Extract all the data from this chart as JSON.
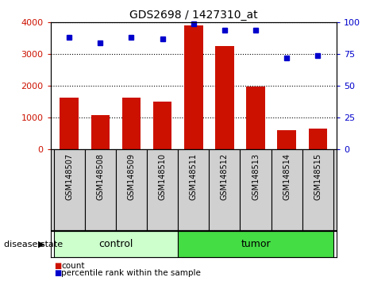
{
  "title": "GDS2698 / 1427310_at",
  "samples": [
    "GSM148507",
    "GSM148508",
    "GSM148509",
    "GSM148510",
    "GSM148511",
    "GSM148512",
    "GSM148513",
    "GSM148514",
    "GSM148515"
  ],
  "counts": [
    1620,
    1060,
    1630,
    1490,
    3920,
    3260,
    1980,
    600,
    640
  ],
  "percentiles": [
    88,
    84,
    88,
    87,
    99,
    94,
    94,
    72,
    74
  ],
  "groups": [
    "control",
    "control",
    "control",
    "control",
    "tumor",
    "tumor",
    "tumor",
    "tumor",
    "tumor"
  ],
  "bar_color": "#cc1100",
  "dot_color": "#0000cc",
  "left_ylim": [
    0,
    4000
  ],
  "right_ylim": [
    0,
    100
  ],
  "left_yticks": [
    0,
    1000,
    2000,
    3000,
    4000
  ],
  "right_yticks": [
    0,
    25,
    50,
    75,
    100
  ],
  "left_yticklabels": [
    "0",
    "1000",
    "2000",
    "3000",
    "4000"
  ],
  "right_yticklabels": [
    "0",
    "25",
    "50",
    "75",
    "100"
  ],
  "disease_state_label": "disease state",
  "legend_count": "count",
  "legend_percentile": "percentile rank within the sample",
  "control_color": "#ccffcc",
  "tumor_color": "#44dd44",
  "xlabels_bg": "#d0d0d0",
  "plot_bg": "#ffffff"
}
